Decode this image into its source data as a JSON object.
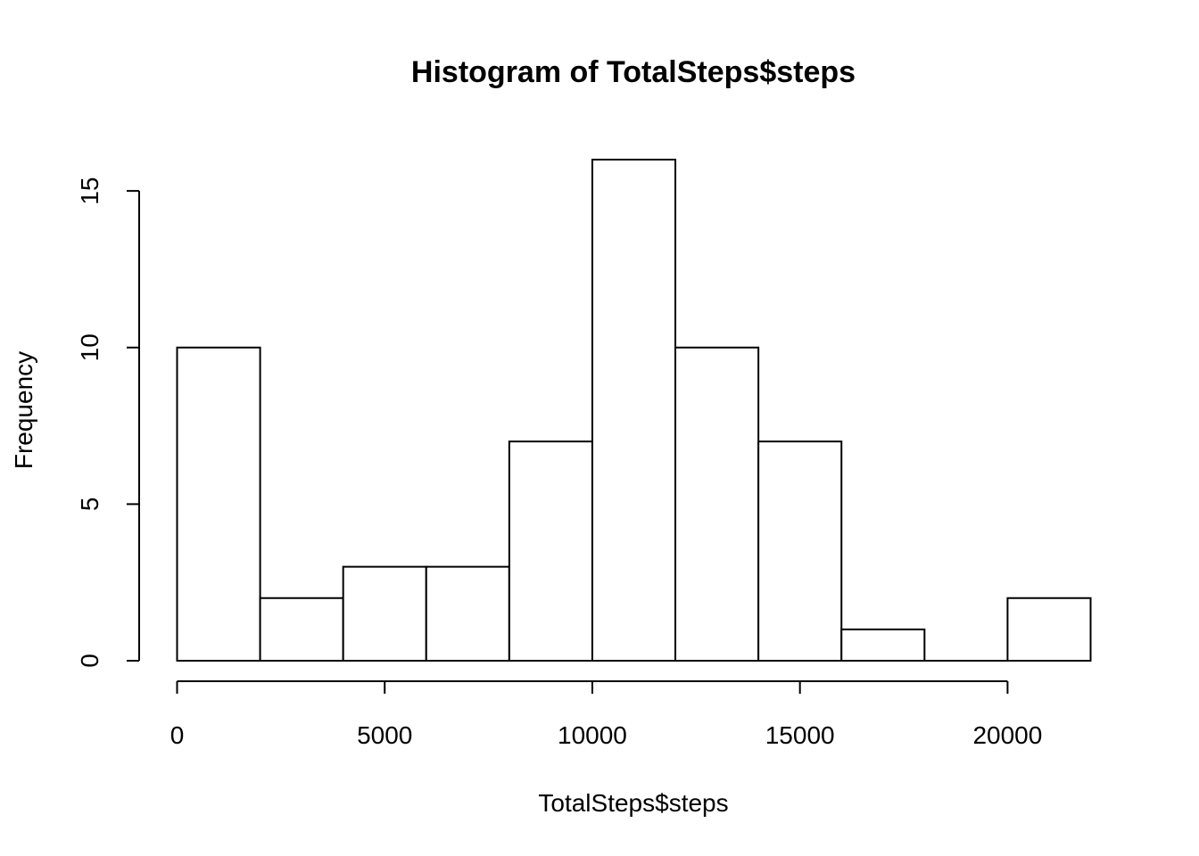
{
  "chart_data": {
    "type": "bar",
    "title": "Histogram of TotalSteps$steps",
    "xlabel": "TotalSteps$steps",
    "ylabel": "Frequency",
    "bins": [
      {
        "start": 0,
        "end": 2000,
        "count": 10
      },
      {
        "start": 2000,
        "end": 4000,
        "count": 2
      },
      {
        "start": 4000,
        "end": 6000,
        "count": 3
      },
      {
        "start": 6000,
        "end": 8000,
        "count": 3
      },
      {
        "start": 8000,
        "end": 10000,
        "count": 7
      },
      {
        "start": 10000,
        "end": 12000,
        "count": 16
      },
      {
        "start": 12000,
        "end": 14000,
        "count": 10
      },
      {
        "start": 14000,
        "end": 16000,
        "count": 7
      },
      {
        "start": 16000,
        "end": 18000,
        "count": 1
      },
      {
        "start": 18000,
        "end": 20000,
        "count": 0
      },
      {
        "start": 20000,
        "end": 22000,
        "count": 2
      }
    ],
    "xlim": [
      0,
      22000
    ],
    "ylim": [
      0,
      16
    ],
    "x_ticks": [
      0,
      5000,
      10000,
      15000,
      20000
    ],
    "y_ticks": [
      0,
      5,
      10,
      15
    ],
    "x_tick_labels": [
      "0",
      "5000",
      "10000",
      "15000",
      "20000"
    ],
    "y_tick_labels": [
      "0",
      "5",
      "10",
      "15"
    ],
    "grid": false,
    "legend": "none"
  }
}
